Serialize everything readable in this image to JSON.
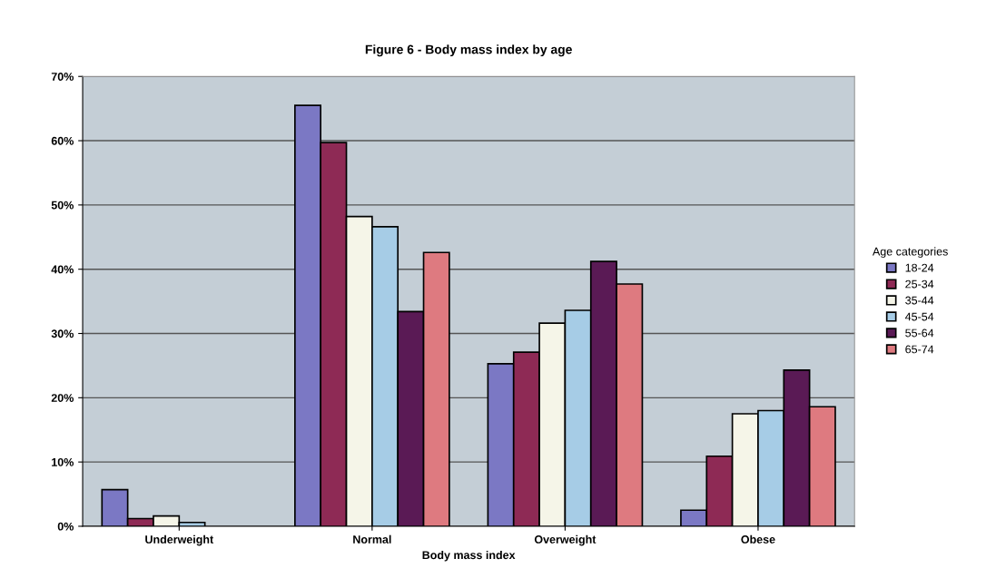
{
  "chart_data": {
    "type": "bar",
    "title": "Figure 6 - Body mass index by age",
    "xlabel": "Body mass index",
    "legend_title": "Age categories",
    "legend": "right",
    "categories": [
      "Underweight",
      "Normal",
      "Overweight",
      "Obese"
    ],
    "series": [
      {
        "name": "18-24",
        "color": "#7b78c4",
        "values": [
          5.7,
          65.5,
          25.3,
          2.5
        ]
      },
      {
        "name": "25-34",
        "color": "#8e2a55",
        "values": [
          1.2,
          59.7,
          27.1,
          10.9
        ]
      },
      {
        "name": "35-44",
        "color": "#f5f5e8",
        "values": [
          1.6,
          48.2,
          31.6,
          17.5
        ]
      },
      {
        "name": "45-54",
        "color": "#a6cce6",
        "values": [
          0.6,
          46.6,
          33.6,
          18.0
        ]
      },
      {
        "name": "55-64",
        "color": "#5a1a55",
        "values": [
          null,
          33.4,
          41.2,
          24.3
        ]
      },
      {
        "name": "65-74",
        "color": "#de7a80",
        "values": [
          null,
          42.6,
          37.7,
          18.6
        ]
      }
    ],
    "ylim": [
      0,
      70
    ],
    "yticks": [
      {
        "value": 0,
        "label": "0%"
      },
      {
        "value": 10,
        "label": "10%"
      },
      {
        "value": 20,
        "label": "20%"
      },
      {
        "value": 30,
        "label": "30%"
      },
      {
        "value": 40,
        "label": "40%"
      },
      {
        "value": 50,
        "label": "50%"
      },
      {
        "value": 60,
        "label": "60%"
      },
      {
        "value": 70,
        "label": "70%"
      }
    ],
    "grid": "y"
  }
}
